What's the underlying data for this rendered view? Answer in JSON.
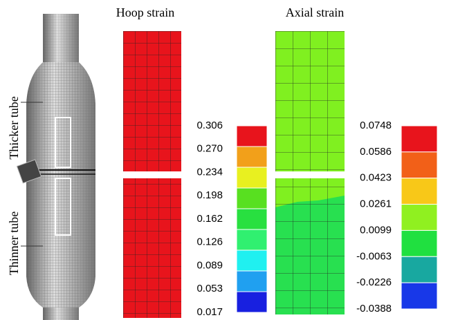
{
  "titles": {
    "hoop": "Hoop strain",
    "axial": "Axial strain"
  },
  "tube_labels": {
    "thicker": "Thicker tube",
    "thinner": "Thinner tube"
  },
  "hoop_legend": {
    "labels": [
      "0.306",
      "0.270",
      "0.234",
      "0.198",
      "0.162",
      "0.126",
      "0.089",
      "0.053",
      "0.017"
    ],
    "colors": [
      "#e8141c",
      "#f2a01a",
      "#e8f020",
      "#58e020",
      "#28e040",
      "#30f070",
      "#20f0f0",
      "#20a0f0",
      "#1820e0"
    ]
  },
  "axial_legend": {
    "labels": [
      "0.0748",
      "0.0586",
      "0.0423",
      "0.0261",
      "0.0099",
      "-0.0063",
      "-0.0226",
      "-0.0388"
    ],
    "colors": [
      "#e8141c",
      "#f26018",
      "#f8c818",
      "#90f020",
      "#20e040",
      "#18a8a0",
      "#1838e8"
    ]
  }
}
